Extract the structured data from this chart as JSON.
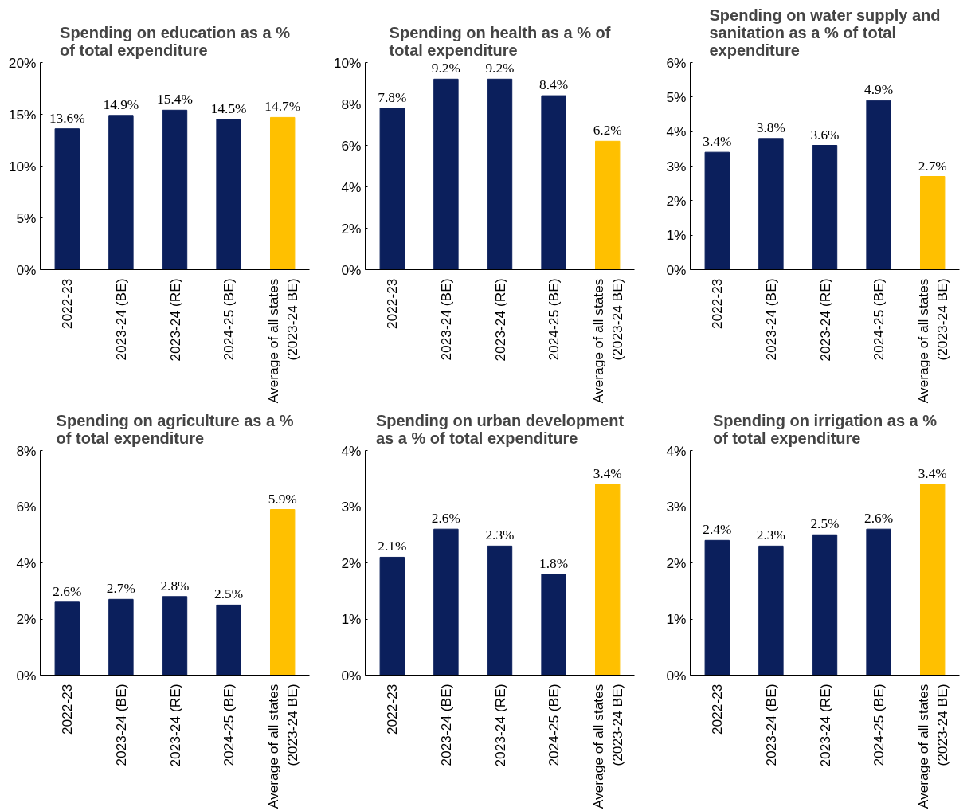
{
  "chart_data": [
    {
      "type": "bar",
      "title": "Spending on education as a % of total expenditure",
      "categories": [
        "2022-23",
        "2023-24 (BE)",
        "2023-24 (RE)",
        "2024-25 (BE)",
        "Average of all states\n(2023-24 BE)"
      ],
      "values": [
        13.6,
        14.9,
        15.4,
        14.5,
        14.7
      ],
      "colors": [
        "#0b1f5c",
        "#0b1f5c",
        "#0b1f5c",
        "#0b1f5c",
        "#ffc000"
      ],
      "value_labels": [
        "13.6%",
        "14.9%",
        "15.4%",
        "14.5%",
        "14.7%"
      ],
      "ylim": [
        0,
        20
      ],
      "yticks": [
        {
          "value": 0,
          "label": "0%"
        },
        {
          "value": 5,
          "label": "5%"
        },
        {
          "value": 10,
          "label": "10%"
        },
        {
          "value": 15,
          "label": "15%"
        },
        {
          "value": 20,
          "label": "20%"
        }
      ]
    },
    {
      "type": "bar",
      "title": "Spending on health as a % of total expenditure",
      "categories": [
        "2022-23",
        "2023-24 (BE)",
        "2023-24 (RE)",
        "2024-25 (BE)",
        "Average of all states\n(2023-24 BE)"
      ],
      "values": [
        7.8,
        9.2,
        9.2,
        8.4,
        6.2
      ],
      "colors": [
        "#0b1f5c",
        "#0b1f5c",
        "#0b1f5c",
        "#0b1f5c",
        "#ffc000"
      ],
      "value_labels": [
        "7.8%",
        "9.2%",
        "9.2%",
        "8.4%",
        "6.2%"
      ],
      "ylim": [
        0,
        10
      ],
      "yticks": [
        {
          "value": 0,
          "label": "0%"
        },
        {
          "value": 2,
          "label": "2%"
        },
        {
          "value": 4,
          "label": "4%"
        },
        {
          "value": 6,
          "label": "6%"
        },
        {
          "value": 8,
          "label": "8%"
        },
        {
          "value": 10,
          "label": "10%"
        }
      ]
    },
    {
      "type": "bar",
      "title": "Spending on water supply and sanitation as a % of total expenditure",
      "categories": [
        "2022-23",
        "2023-24 (BE)",
        "2023-24 (RE)",
        "2024-25 (BE)",
        "Average of all states\n(2023-24 BE)"
      ],
      "values": [
        3.4,
        3.8,
        3.6,
        4.9,
        2.7
      ],
      "colors": [
        "#0b1f5c",
        "#0b1f5c",
        "#0b1f5c",
        "#0b1f5c",
        "#ffc000"
      ],
      "value_labels": [
        "3.4%",
        "3.8%",
        "3.6%",
        "4.9%",
        "2.7%"
      ],
      "ylim": [
        0,
        6
      ],
      "yticks": [
        {
          "value": 0,
          "label": "0%"
        },
        {
          "value": 1,
          "label": "1%"
        },
        {
          "value": 2,
          "label": "2%"
        },
        {
          "value": 3,
          "label": "3%"
        },
        {
          "value": 4,
          "label": "4%"
        },
        {
          "value": 5,
          "label": "5%"
        },
        {
          "value": 6,
          "label": "6%"
        }
      ]
    },
    {
      "type": "bar",
      "title": "Spending on agriculture as a % of total expenditure",
      "categories": [
        "2022-23",
        "2023-24 (BE)",
        "2023-24 (RE)",
        "2024-25 (BE)",
        "Average of all states\n(2023-24 BE)"
      ],
      "values": [
        2.6,
        2.7,
        2.8,
        2.5,
        5.9
      ],
      "colors": [
        "#0b1f5c",
        "#0b1f5c",
        "#0b1f5c",
        "#0b1f5c",
        "#ffc000"
      ],
      "value_labels": [
        "2.6%",
        "2.7%",
        "2.8%",
        "2.5%",
        "5.9%"
      ],
      "ylim": [
        0,
        8
      ],
      "yticks": [
        {
          "value": 0,
          "label": "0%"
        },
        {
          "value": 2,
          "label": "2%"
        },
        {
          "value": 4,
          "label": "4%"
        },
        {
          "value": 6,
          "label": "6%"
        },
        {
          "value": 8,
          "label": "8%"
        }
      ]
    },
    {
      "type": "bar",
      "title": "Spending on urban development as a % of total expenditure",
      "categories": [
        "2022-23",
        "2023-24 (BE)",
        "2023-24 (RE)",
        "2024-25 (BE)",
        "Average of all states\n(2023-24 BE)"
      ],
      "values": [
        2.1,
        2.6,
        2.3,
        1.8,
        3.4
      ],
      "colors": [
        "#0b1f5c",
        "#0b1f5c",
        "#0b1f5c",
        "#0b1f5c",
        "#ffc000"
      ],
      "value_labels": [
        "2.1%",
        "2.6%",
        "2.3%",
        "1.8%",
        "3.4%"
      ],
      "ylim": [
        0,
        4
      ],
      "yticks": [
        {
          "value": 0,
          "label": "0%"
        },
        {
          "value": 1,
          "label": "1%"
        },
        {
          "value": 2,
          "label": "2%"
        },
        {
          "value": 3,
          "label": "3%"
        },
        {
          "value": 4,
          "label": "4%"
        }
      ]
    },
    {
      "type": "bar",
      "title": "Spending on irrigation as a % of total expenditure",
      "categories": [
        "2022-23",
        "2023-24 (BE)",
        "2023-24 (RE)",
        "2024-25 (BE)",
        "Average of all states\n(2023-24 BE)"
      ],
      "values": [
        2.4,
        2.3,
        2.5,
        2.6,
        3.4
      ],
      "colors": [
        "#0b1f5c",
        "#0b1f5c",
        "#0b1f5c",
        "#0b1f5c",
        "#ffc000"
      ],
      "value_labels": [
        "2.4%",
        "2.3%",
        "2.5%",
        "2.6%",
        "3.4%"
      ],
      "ylim": [
        0,
        4
      ],
      "yticks": [
        {
          "value": 0,
          "label": "0%"
        },
        {
          "value": 1,
          "label": "1%"
        },
        {
          "value": 2,
          "label": "2%"
        },
        {
          "value": 3,
          "label": "3%"
        },
        {
          "value": 4,
          "label": "4%"
        }
      ]
    }
  ]
}
